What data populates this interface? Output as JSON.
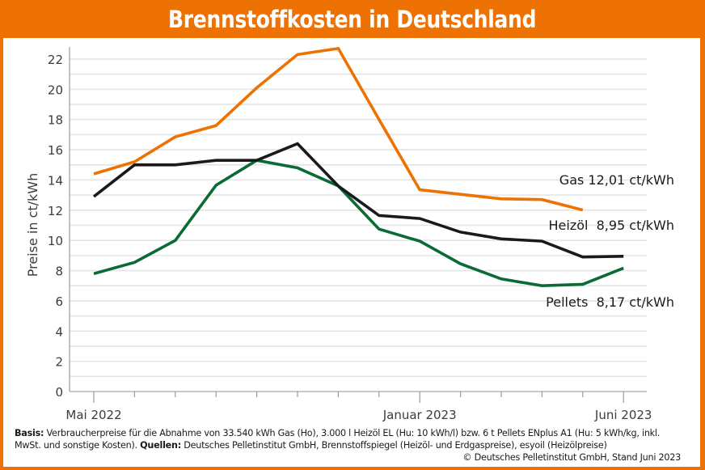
{
  "header": {
    "title": "Brennstoffkosten in Deutschland"
  },
  "colors": {
    "frame": "#ee7203",
    "gas": "#ee7203",
    "heizoel": "#1a1a1a",
    "pellets": "#0b6b35",
    "grid": "#e4e4e4",
    "axis": "#9a9a9a"
  },
  "chart_data": {
    "type": "line",
    "title": "Brennstoffkosten in Deutschland",
    "xlabel": "",
    "ylabel": "Preise in ct/kWh",
    "ylim": [
      0,
      22.5
    ],
    "yticks": [
      0,
      2,
      4,
      6,
      8,
      10,
      12,
      14,
      16,
      18,
      20,
      22
    ],
    "ytick_labels": [
      "0",
      "2",
      "4",
      "6",
      "8",
      "10",
      "12",
      "14",
      "16",
      "18",
      "20",
      "22"
    ],
    "minor_grid_step": 1,
    "grid": true,
    "x": [
      "2022-05",
      "2022-06",
      "2022-07",
      "2022-08",
      "2022-09",
      "2022-10",
      "2022-11",
      "2022-12",
      "2023-01",
      "2023-02",
      "2023-03",
      "2023-04",
      "2023-05",
      "2023-06"
    ],
    "xtick_labels": [
      {
        "index": 0,
        "text": "Mai 2022"
      },
      {
        "index": 8,
        "text": "Januar 2023"
      },
      {
        "index": 13,
        "text": "Juni 2023"
      }
    ],
    "series": [
      {
        "name": "Gas",
        "key": "gas",
        "label": "Gas 12,01 ct/kWh",
        "label_value": 12.01,
        "values": [
          14.4,
          15.2,
          16.85,
          17.6,
          20.1,
          22.3,
          22.7,
          18.0,
          13.35,
          13.05,
          12.75,
          12.7,
          12.01,
          null
        ]
      },
      {
        "name": "Heizöl",
        "key": "heizoel",
        "label": "Heizöl  8,95 ct/kWh",
        "label_value": 8.95,
        "values": [
          12.9,
          15.0,
          15.0,
          15.3,
          15.3,
          16.4,
          13.6,
          11.65,
          11.45,
          10.55,
          10.1,
          9.95,
          8.9,
          8.95
        ]
      },
      {
        "name": "Pellets",
        "key": "pellets",
        "label": "Pellets  8,17 ct/kWh",
        "label_value": 8.17,
        "values": [
          7.8,
          8.55,
          10.0,
          13.65,
          15.3,
          14.8,
          13.6,
          10.75,
          9.95,
          8.45,
          7.45,
          7.0,
          7.1,
          8.17
        ]
      }
    ],
    "legend": "direct-labels-right"
  },
  "footnote": {
    "basis_label": "Basis:",
    "basis_text": " Verbraucherpreise für die Abnahme von 33.540 kWh Gas (Ho), 3.000 l Heizöl EL (Hu: 10 kWh/l) bzw. 6 t Pellets ENplus A1 (Hu: 5 kWh/kg, inkl. MwSt. und sonstige Kosten). ",
    "sources_label": "Quellen:",
    "sources_text": " Deutsches Pelletinstitut GmbH, Brennstoffspiegel (Heizöl- und Erdgaspreise), esyoil (Heizölpreise)",
    "copyright": "© Deutsches Pelletinstitut GmbH, Stand Juni 2023"
  }
}
